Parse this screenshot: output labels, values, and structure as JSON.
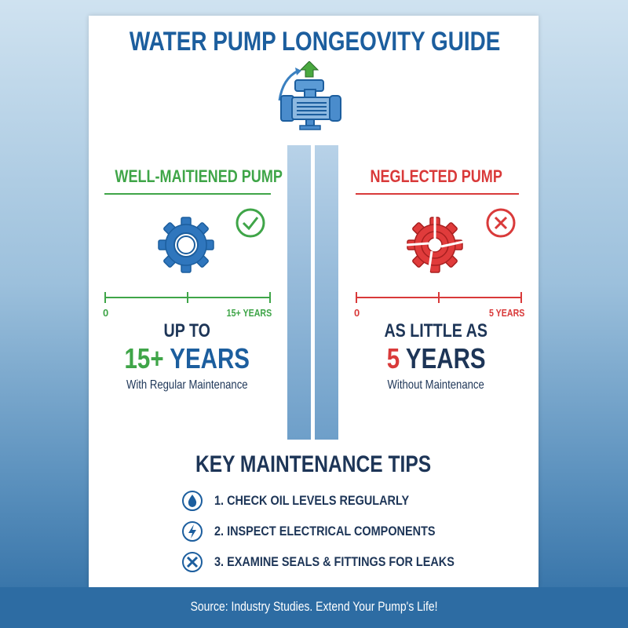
{
  "title": "WATER PUMP LONGEOVITY GUIDE",
  "left": {
    "heading": "WELL-MAITIENED PUMP",
    "axis_start": "0",
    "axis_end": "15+ YEARS",
    "lead": "UP TO",
    "number": "15+",
    "unit": "YEARS",
    "caption": "With Regular Maintenance",
    "status_icon": "check-circle-icon"
  },
  "right": {
    "heading": "NEGLECTED PUMP",
    "axis_start": "0",
    "axis_end": "5 YEARS",
    "lead": "AS LITTLE AS",
    "number": "5",
    "unit": "YEARS",
    "caption": "Without Maintenance",
    "status_icon": "x-circle-icon"
  },
  "tips": {
    "title": "KEY MAINTENANCE TIPS",
    "items": [
      {
        "text": "1. CHECK OIL LEVELS REGULARLY",
        "icon": "droplet-icon"
      },
      {
        "text": "2. INSPECT ELECTRICAL COMPONENTS",
        "icon": "lightning-icon"
      },
      {
        "text": "3. EXAMINE SEALS & FITTINGS FOR LEAKS",
        "icon": "tools-icon"
      }
    ]
  },
  "footer": "Source: Industry Studies. Extend Your Pump's Life!",
  "colors": {
    "blue": "#1c5e9e",
    "green": "#3fa548",
    "red": "#d93a3a",
    "navy": "#1d3557"
  }
}
